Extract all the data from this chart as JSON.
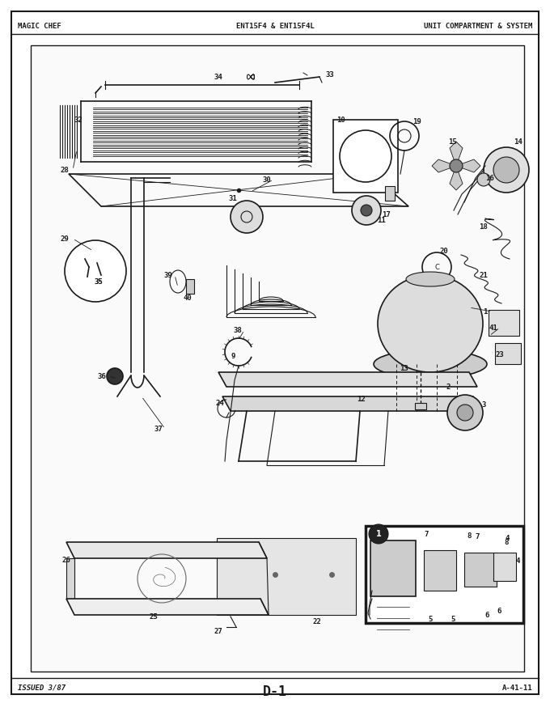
{
  "title_left": "MAGIC CHEF",
  "title_center": "ENT15F4 & ENT15F4L",
  "title_right": "UNIT COMPARTMENT & SYSTEM",
  "footer_left": "ISSUED 3/87",
  "footer_center": "D-1",
  "footer_right": "A-41-11",
  "bg_color": "#ffffff",
  "border_color": "#000000",
  "fig_width": 6.8,
  "fig_height": 8.8,
  "dpi": 100
}
